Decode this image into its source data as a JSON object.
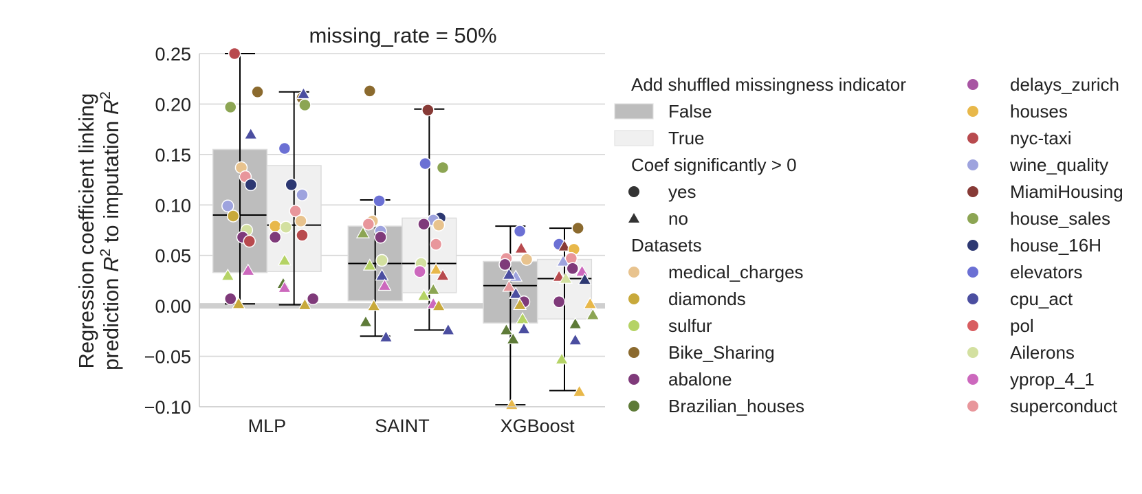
{
  "chart_data": {
    "type": "box",
    "title": "missing_rate = 50%",
    "ylabel_line1": "Regression coefficient linking",
    "ylabel_line2_prefix": "prediction ",
    "ylabel_line2_mid": " to imputation ",
    "ylabel_r": "R",
    "ylabel_sup": "2",
    "ylim": [
      -0.1,
      0.25
    ],
    "yticks": [
      -0.1,
      -0.05,
      0.0,
      0.05,
      0.1,
      0.15,
      0.2,
      0.25
    ],
    "ytick_labels": [
      "−0.10",
      "−0.05",
      "0.00",
      "0.05",
      "0.10",
      "0.15",
      "0.20",
      "0.25"
    ],
    "categories": [
      "MLP",
      "SAINT",
      "XGBoost"
    ],
    "grid": true,
    "reference_line": 0.0,
    "hue_colors": {
      "False": "#bdbdbd",
      "True": "#f0f0f0"
    },
    "boxes": [
      {
        "category": "MLP",
        "hue": "False",
        "q1": 0.033,
        "median": 0.09,
        "q3": 0.155,
        "whisker_low": 0.002,
        "whisker_high": 0.25
      },
      {
        "category": "MLP",
        "hue": "True",
        "q1": 0.034,
        "median": 0.08,
        "q3": 0.139,
        "whisker_low": 0.001,
        "whisker_high": 0.212
      },
      {
        "category": "SAINT",
        "hue": "False",
        "q1": 0.005,
        "median": 0.042,
        "q3": 0.079,
        "whisker_low": -0.03,
        "whisker_high": 0.105
      },
      {
        "category": "SAINT",
        "hue": "True",
        "q1": 0.013,
        "median": 0.042,
        "q3": 0.087,
        "whisker_low": -0.024,
        "whisker_high": 0.195
      },
      {
        "category": "XGBoost",
        "hue": "False",
        "q1": -0.017,
        "median": 0.02,
        "q3": 0.044,
        "whisker_low": -0.098,
        "whisker_high": 0.079
      },
      {
        "category": "XGBoost",
        "hue": "True",
        "q1": -0.013,
        "median": 0.027,
        "q3": 0.046,
        "whisker_low": -0.084,
        "whisker_high": 0.077
      }
    ],
    "points": [
      {
        "x": 0.76,
        "y": 0.25,
        "ds": "nyc-taxi",
        "m": "o"
      },
      {
        "x": 0.73,
        "y": 0.197,
        "ds": "house_sales",
        "m": "o"
      },
      {
        "x": 0.93,
        "y": 0.212,
        "ds": "Bike_Sharing",
        "m": "o"
      },
      {
        "x": 0.88,
        "y": 0.17,
        "ds": "cpu_act",
        "m": "^"
      },
      {
        "x": 0.81,
        "y": 0.137,
        "ds": "medical_charges",
        "m": "o"
      },
      {
        "x": 0.84,
        "y": 0.128,
        "ds": "superconduct",
        "m": "o"
      },
      {
        "x": 0.88,
        "y": 0.12,
        "ds": "house_16H",
        "m": "o"
      },
      {
        "x": 0.71,
        "y": 0.099,
        "ds": "wine_quality",
        "m": "o"
      },
      {
        "x": 0.75,
        "y": 0.089,
        "ds": "diamonds",
        "m": "o"
      },
      {
        "x": 0.85,
        "y": 0.075,
        "ds": "Ailerons",
        "m": "o"
      },
      {
        "x": 0.82,
        "y": 0.068,
        "ds": "abalone",
        "m": "o"
      },
      {
        "x": 0.87,
        "y": 0.064,
        "ds": "nyc-taxi",
        "m": "o"
      },
      {
        "x": 0.86,
        "y": 0.035,
        "ds": "yprop_4_1",
        "m": "^"
      },
      {
        "x": 0.71,
        "y": 0.03,
        "ds": "sulfur",
        "m": "^"
      },
      {
        "x": 0.73,
        "y": 0.007,
        "ds": "abalone",
        "m": "o"
      },
      {
        "x": 0.79,
        "y": 0.002,
        "ds": "diamonds",
        "m": "^"
      },
      {
        "x": 1.26,
        "y": 0.206,
        "ds": "Bike_Sharing",
        "m": "o"
      },
      {
        "x": 1.28,
        "y": 0.199,
        "ds": "house_sales",
        "m": "o"
      },
      {
        "x": 1.27,
        "y": 0.21,
        "ds": "cpu_act",
        "m": "^"
      },
      {
        "x": 1.13,
        "y": 0.156,
        "ds": "elevators",
        "m": "o"
      },
      {
        "x": 1.18,
        "y": 0.12,
        "ds": "house_16H",
        "m": "o"
      },
      {
        "x": 1.26,
        "y": 0.11,
        "ds": "wine_quality",
        "m": "o"
      },
      {
        "x": 1.21,
        "y": 0.094,
        "ds": "superconduct",
        "m": "o"
      },
      {
        "x": 1.25,
        "y": 0.084,
        "ds": "medical_charges",
        "m": "o"
      },
      {
        "x": 1.06,
        "y": 0.079,
        "ds": "houses",
        "m": "o"
      },
      {
        "x": 1.14,
        "y": 0.078,
        "ds": "Ailerons",
        "m": "o"
      },
      {
        "x": 1.26,
        "y": 0.07,
        "ds": "nyc-taxi",
        "m": "o"
      },
      {
        "x": 1.06,
        "y": 0.068,
        "ds": "abalone",
        "m": "o"
      },
      {
        "x": 1.13,
        "y": 0.045,
        "ds": "sulfur",
        "m": "^"
      },
      {
        "x": 1.12,
        "y": 0.022,
        "ds": "Brazilian_houses",
        "m": "^"
      },
      {
        "x": 1.13,
        "y": 0.018,
        "ds": "yprop_4_1",
        "m": "^"
      },
      {
        "x": 1.34,
        "y": 0.007,
        "ds": "abalone",
        "m": "o"
      },
      {
        "x": 1.28,
        "y": 0.001,
        "ds": "diamonds",
        "m": "^"
      },
      {
        "x": 1.76,
        "y": 0.213,
        "ds": "Bike_Sharing",
        "m": "o"
      },
      {
        "x": 1.83,
        "y": 0.104,
        "ds": "elevators",
        "m": "o"
      },
      {
        "x": 1.78,
        "y": 0.084,
        "ds": "medical_charges",
        "m": "o"
      },
      {
        "x": 1.75,
        "y": 0.081,
        "ds": "superconduct",
        "m": "o"
      },
      {
        "x": 1.84,
        "y": 0.074,
        "ds": "wine_quality",
        "m": "o"
      },
      {
        "x": 1.71,
        "y": 0.072,
        "ds": "house_sales",
        "m": "^"
      },
      {
        "x": 1.84,
        "y": 0.068,
        "ds": "abalone",
        "m": "o"
      },
      {
        "x": 1.85,
        "y": 0.045,
        "ds": "Ailerons",
        "m": "o"
      },
      {
        "x": 1.76,
        "y": 0.04,
        "ds": "sulfur",
        "m": "^"
      },
      {
        "x": 1.85,
        "y": 0.03,
        "ds": "cpu_act",
        "m": "^"
      },
      {
        "x": 1.87,
        "y": 0.02,
        "ds": "yprop_4_1",
        "m": "^"
      },
      {
        "x": 1.79,
        "y": 0.0,
        "ds": "diamonds",
        "m": "^"
      },
      {
        "x": 1.73,
        "y": -0.016,
        "ds": "Brazilian_houses",
        "m": "^"
      },
      {
        "x": 1.88,
        "y": -0.031,
        "ds": "cpu_act",
        "m": "^"
      },
      {
        "x": 2.19,
        "y": 0.194,
        "ds": "MiamiHousing",
        "m": "o"
      },
      {
        "x": 2.17,
        "y": 0.141,
        "ds": "elevators",
        "m": "o"
      },
      {
        "x": 2.3,
        "y": 0.137,
        "ds": "house_sales",
        "m": "o"
      },
      {
        "x": 2.28,
        "y": 0.087,
        "ds": "house_16H",
        "m": "o"
      },
      {
        "x": 2.23,
        "y": 0.085,
        "ds": "wine_quality",
        "m": "o"
      },
      {
        "x": 2.16,
        "y": 0.081,
        "ds": "abalone",
        "m": "o"
      },
      {
        "x": 2.27,
        "y": 0.08,
        "ds": "medical_charges",
        "m": "o"
      },
      {
        "x": 2.25,
        "y": 0.061,
        "ds": "superconduct",
        "m": "o"
      },
      {
        "x": 2.14,
        "y": 0.042,
        "ds": "Ailerons",
        "m": "o"
      },
      {
        "x": 2.25,
        "y": 0.036,
        "ds": "houses",
        "m": "^"
      },
      {
        "x": 2.13,
        "y": 0.034,
        "ds": "yprop_4_1",
        "m": "o"
      },
      {
        "x": 2.3,
        "y": 0.03,
        "ds": "nyc-taxi",
        "m": "^"
      },
      {
        "x": 2.23,
        "y": 0.016,
        "ds": "house_sales",
        "m": "^"
      },
      {
        "x": 2.16,
        "y": 0.01,
        "ds": "sulfur",
        "m": "^"
      },
      {
        "x": 2.23,
        "y": 0.002,
        "ds": "yprop_4_1",
        "m": "^"
      },
      {
        "x": 2.27,
        "y": 0.0,
        "ds": "diamonds",
        "m": "^"
      },
      {
        "x": 2.34,
        "y": -0.024,
        "ds": "cpu_act",
        "m": "^"
      },
      {
        "x": 2.77,
        "y": 0.047,
        "ds": "superconduct",
        "m": "o"
      },
      {
        "x": 2.87,
        "y": 0.074,
        "ds": "elevators",
        "m": "o"
      },
      {
        "x": 2.92,
        "y": 0.046,
        "ds": "medical_charges",
        "m": "o"
      },
      {
        "x": 2.88,
        "y": 0.057,
        "ds": "nyc-taxi",
        "m": "^"
      },
      {
        "x": 2.76,
        "y": 0.041,
        "ds": "abalone",
        "m": "o"
      },
      {
        "x": 2.84,
        "y": 0.029,
        "ds": "wine_quality",
        "m": "^"
      },
      {
        "x": 2.79,
        "y": 0.031,
        "ds": "cpu_act",
        "m": "^"
      },
      {
        "x": 2.79,
        "y": 0.019,
        "ds": "superconduct",
        "m": "^"
      },
      {
        "x": 2.84,
        "y": 0.012,
        "ds": "cpu_act",
        "m": "^"
      },
      {
        "x": 2.9,
        "y": 0.004,
        "ds": "abalone",
        "m": "o"
      },
      {
        "x": 2.87,
        "y": 0.001,
        "ds": "diamonds",
        "m": "^"
      },
      {
        "x": 2.89,
        "y": -0.013,
        "ds": "sulfur",
        "m": "^"
      },
      {
        "x": 2.77,
        "y": -0.024,
        "ds": "Brazilian_houses",
        "m": "^"
      },
      {
        "x": 2.9,
        "y": -0.023,
        "ds": "cpu_act",
        "m": "^"
      },
      {
        "x": 2.82,
        "y": -0.033,
        "ds": "Brazilian_houses",
        "m": "^"
      },
      {
        "x": 2.81,
        "y": -0.098,
        "ds": "houses",
        "m": "^"
      },
      {
        "x": 3.3,
        "y": 0.077,
        "ds": "Bike_Sharing",
        "m": "o"
      },
      {
        "x": 3.16,
        "y": 0.061,
        "ds": "elevators",
        "m": "o"
      },
      {
        "x": 3.2,
        "y": 0.059,
        "ds": "MiamiHousing",
        "m": "^"
      },
      {
        "x": 3.27,
        "y": 0.056,
        "ds": "houses",
        "m": "o"
      },
      {
        "x": 3.25,
        "y": 0.047,
        "ds": "superconduct",
        "m": "o"
      },
      {
        "x": 3.19,
        "y": 0.044,
        "ds": "wine_quality",
        "m": "^"
      },
      {
        "x": 3.26,
        "y": 0.037,
        "ds": "abalone",
        "m": "o"
      },
      {
        "x": 3.33,
        "y": 0.034,
        "ds": "yprop_4_1",
        "m": "^"
      },
      {
        "x": 3.16,
        "y": 0.029,
        "ds": "nyc-taxi",
        "m": "^"
      },
      {
        "x": 3.21,
        "y": 0.027,
        "ds": "Ailerons",
        "m": "^"
      },
      {
        "x": 3.35,
        "y": 0.026,
        "ds": "house_16H",
        "m": "^"
      },
      {
        "x": 3.16,
        "y": 0.004,
        "ds": "abalone",
        "m": "o"
      },
      {
        "x": 3.39,
        "y": 0.002,
        "ds": "houses",
        "m": "^"
      },
      {
        "x": 3.41,
        "y": -0.009,
        "ds": "house_sales",
        "m": "^"
      },
      {
        "x": 3.28,
        "y": -0.018,
        "ds": "Brazilian_houses",
        "m": "^"
      },
      {
        "x": 3.28,
        "y": -0.034,
        "ds": "cpu_act",
        "m": "^"
      },
      {
        "x": 3.18,
        "y": -0.053,
        "ds": "sulfur",
        "m": "^"
      },
      {
        "x": 3.31,
        "y": -0.085,
        "ds": "houses",
        "m": "^"
      }
    ],
    "legend": {
      "hue_title": "Add shuffled missingness indicator",
      "hue_items": [
        {
          "label": "False",
          "color": "#bdbdbd"
        },
        {
          "label": "True",
          "color": "#f0f0f0"
        }
      ],
      "marker_title": "Coef significantly > 0",
      "marker_items": [
        {
          "label": "yes",
          "marker": "o"
        },
        {
          "label": "no",
          "marker": "^"
        }
      ],
      "datasets_title": "Datasets",
      "datasets_col1": [
        {
          "label": "medical_charges",
          "color": "#e8c38e"
        },
        {
          "label": "diamonds",
          "color": "#c8a93b"
        },
        {
          "label": "sulfur",
          "color": "#b5d365"
        },
        {
          "label": "Bike_Sharing",
          "color": "#8b6a2e"
        },
        {
          "label": "abalone",
          "color": "#7f3a7a"
        },
        {
          "label": "Brazilian_houses",
          "color": "#5e7b38"
        }
      ],
      "datasets_col2": [
        {
          "label": "delays_zurich",
          "color": "#a855a3"
        },
        {
          "label": "houses",
          "color": "#e8b84a"
        },
        {
          "label": "nyc-taxi",
          "color": "#b84a4e"
        },
        {
          "label": "wine_quality",
          "color": "#9ea3de"
        },
        {
          "label": "MiamiHousing",
          "color": "#873a36"
        },
        {
          "label": "house_sales",
          "color": "#8ca553"
        },
        {
          "label": "house_16H",
          "color": "#2d3872"
        },
        {
          "label": "elevators",
          "color": "#6b70d4"
        },
        {
          "label": "cpu_act",
          "color": "#4b4ea0"
        },
        {
          "label": "pol",
          "color": "#d85d60"
        },
        {
          "label": "Ailerons",
          "color": "#d3e0a0"
        },
        {
          "label": "yprop_4_1",
          "color": "#cc68bd"
        },
        {
          "label": "superconduct",
          "color": "#e8969b"
        }
      ]
    }
  }
}
